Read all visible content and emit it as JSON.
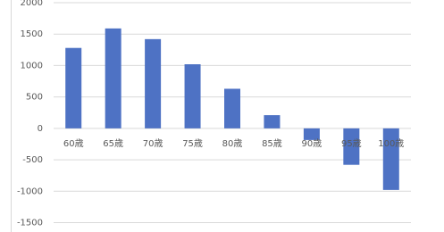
{
  "chart_data": {
    "type": "bar",
    "categories": [
      "60歳",
      "65歳",
      "70歳",
      "75歳",
      "80歳",
      "85歳",
      "90歳",
      "95歳",
      "100歳"
    ],
    "values": [
      1280,
      1590,
      1420,
      1020,
      630,
      210,
      -185,
      -580,
      -980
    ],
    "color": "#4e72c4",
    "ylim": [
      -1500,
      2000
    ],
    "yticks": [
      -1500,
      -1000,
      -500,
      0,
      500,
      1000,
      1500,
      2000
    ],
    "grid": true
  }
}
